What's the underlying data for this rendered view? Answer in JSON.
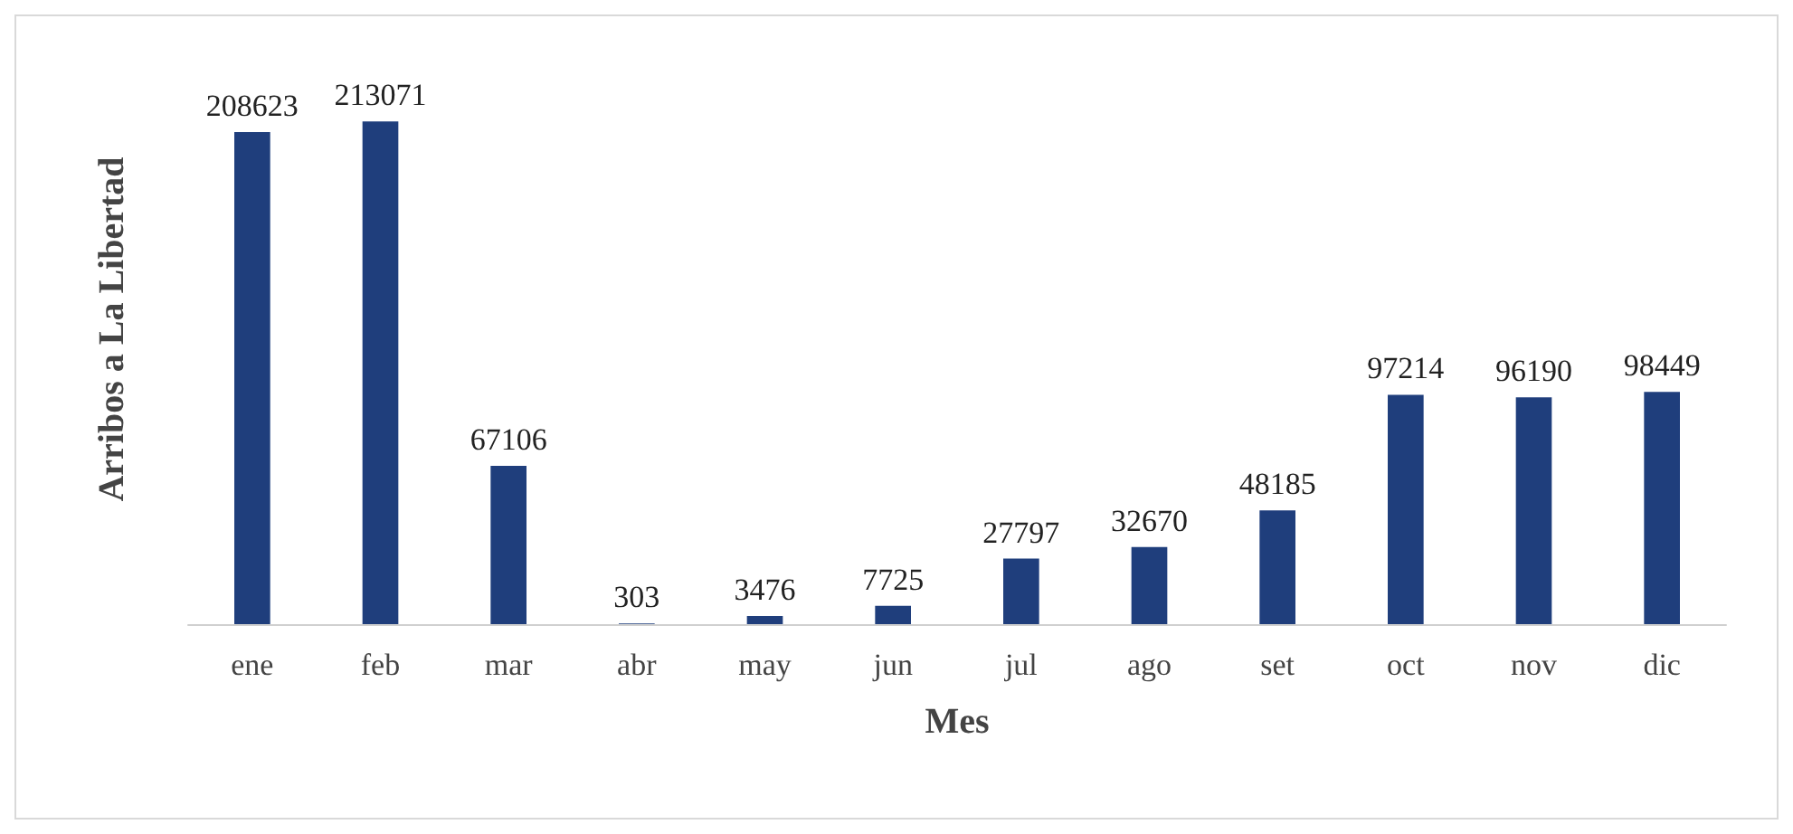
{
  "chart_data": {
    "type": "bar",
    "xlabel": "Mes",
    "ylabel": "Arribos a La Libertad",
    "categories": [
      "ene",
      "feb",
      "mar",
      "abr",
      "may",
      "jun",
      "jul",
      "ago",
      "set",
      "oct",
      "nov",
      "dic"
    ],
    "values": [
      208623,
      213071,
      67106,
      303,
      3476,
      7725,
      27797,
      32670,
      48185,
      97214,
      96190,
      98449
    ],
    "color": "#1f3e7c",
    "data_labels": true,
    "tick_labels": "x"
  }
}
